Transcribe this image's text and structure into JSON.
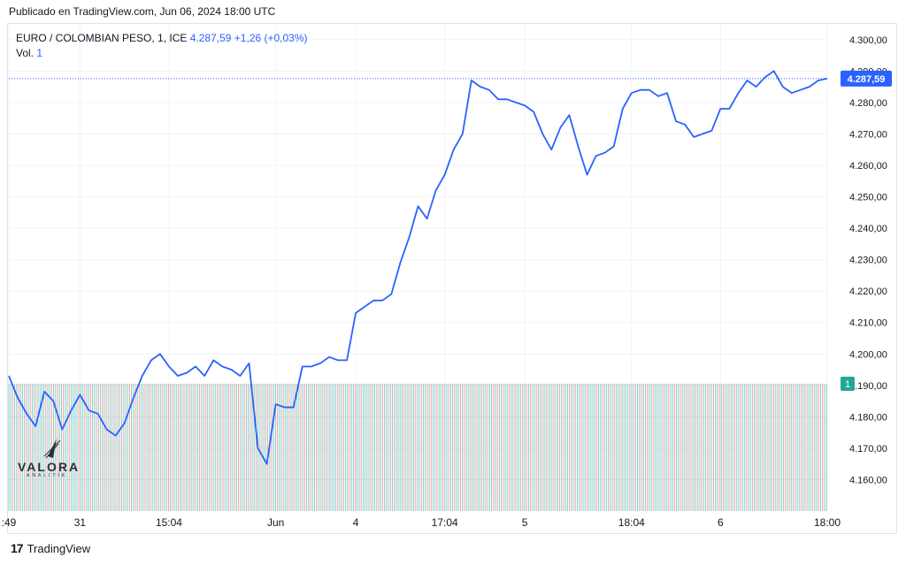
{
  "header": {
    "published": "Publicado en TradingView.com, Jun 06, 2024 18:00 UTC"
  },
  "legend": {
    "symbol": "EURO / COLOMBIAN PESO, 1, ICE",
    "last": "4.287,59",
    "change": "+1,26 (+0,03%)",
    "vol_label": "Vol.",
    "vol_value": "1"
  },
  "footer": {
    "brand": "TradingView"
  },
  "watermark": {
    "name": "VALORA",
    "sub": "ANALITIK"
  },
  "colors": {
    "line": "#2962ff",
    "vol_up": "#26a69a",
    "vol_down": "#ef5350",
    "grid": "#f0f3fa",
    "axis_text": "#131722"
  },
  "chart_data": {
    "type": "line",
    "title": "EURO / COLOMBIAN PESO, 1, ICE",
    "ylim": [
      4150,
      4305
    ],
    "y_ticks": [
      "4.160,00",
      "4.170,00",
      "4.180,00",
      "4.190,00",
      "4.200,00",
      "4.210,00",
      "4.220,00",
      "4.230,00",
      "4.240,00",
      "4.250,00",
      "4.260,00",
      "4.270,00",
      "4.280,00",
      "4.290,00",
      "4.300,00"
    ],
    "y_tick_values": [
      4160,
      4170,
      4180,
      4190,
      4200,
      4210,
      4220,
      4230,
      4240,
      4250,
      4260,
      4270,
      4280,
      4290,
      4300
    ],
    "x_ticks": [
      ":49",
      "31",
      "15:04",
      "Jun",
      "4",
      "17:04",
      "5",
      "18:04",
      "6",
      "18:00"
    ],
    "x_tick_index": [
      0,
      8,
      18,
      30,
      39,
      49,
      58,
      70,
      80,
      92
    ],
    "last_price_label": "4.287,59",
    "last_price": 4287.59,
    "volume_label": "1",
    "volume_level": 4190.5,
    "grid": true,
    "series": [
      {
        "values": [
          4193,
          4186,
          4181,
          4177,
          4188,
          4185,
          4176,
          4182,
          4187,
          4182,
          4181,
          4176,
          4174,
          4178,
          4186,
          4193,
          4198,
          4200,
          4196,
          4193,
          4194,
          4196,
          4193,
          4198,
          4196,
          4195,
          4193,
          4197,
          4170,
          4165,
          4184,
          4183,
          4183,
          4196,
          4196,
          4197,
          4199,
          4198,
          4198,
          4213,
          4215,
          4217,
          4217,
          4219,
          4229,
          4237,
          4247,
          4243,
          4252,
          4257,
          4265,
          4270,
          4287,
          4285,
          4284,
          4281,
          4281,
          4280,
          4279,
          4277,
          4270,
          4265,
          4272,
          4276,
          4266,
          4257,
          4263,
          4264,
          4266,
          4278,
          4283,
          4284,
          4284,
          4282,
          4283,
          4274,
          4273,
          4269,
          4270,
          4271,
          4278,
          4278,
          4283,
          4287,
          4285,
          4288,
          4290,
          4285,
          4283,
          4284,
          4285,
          4287,
          4287.59
        ]
      }
    ]
  }
}
